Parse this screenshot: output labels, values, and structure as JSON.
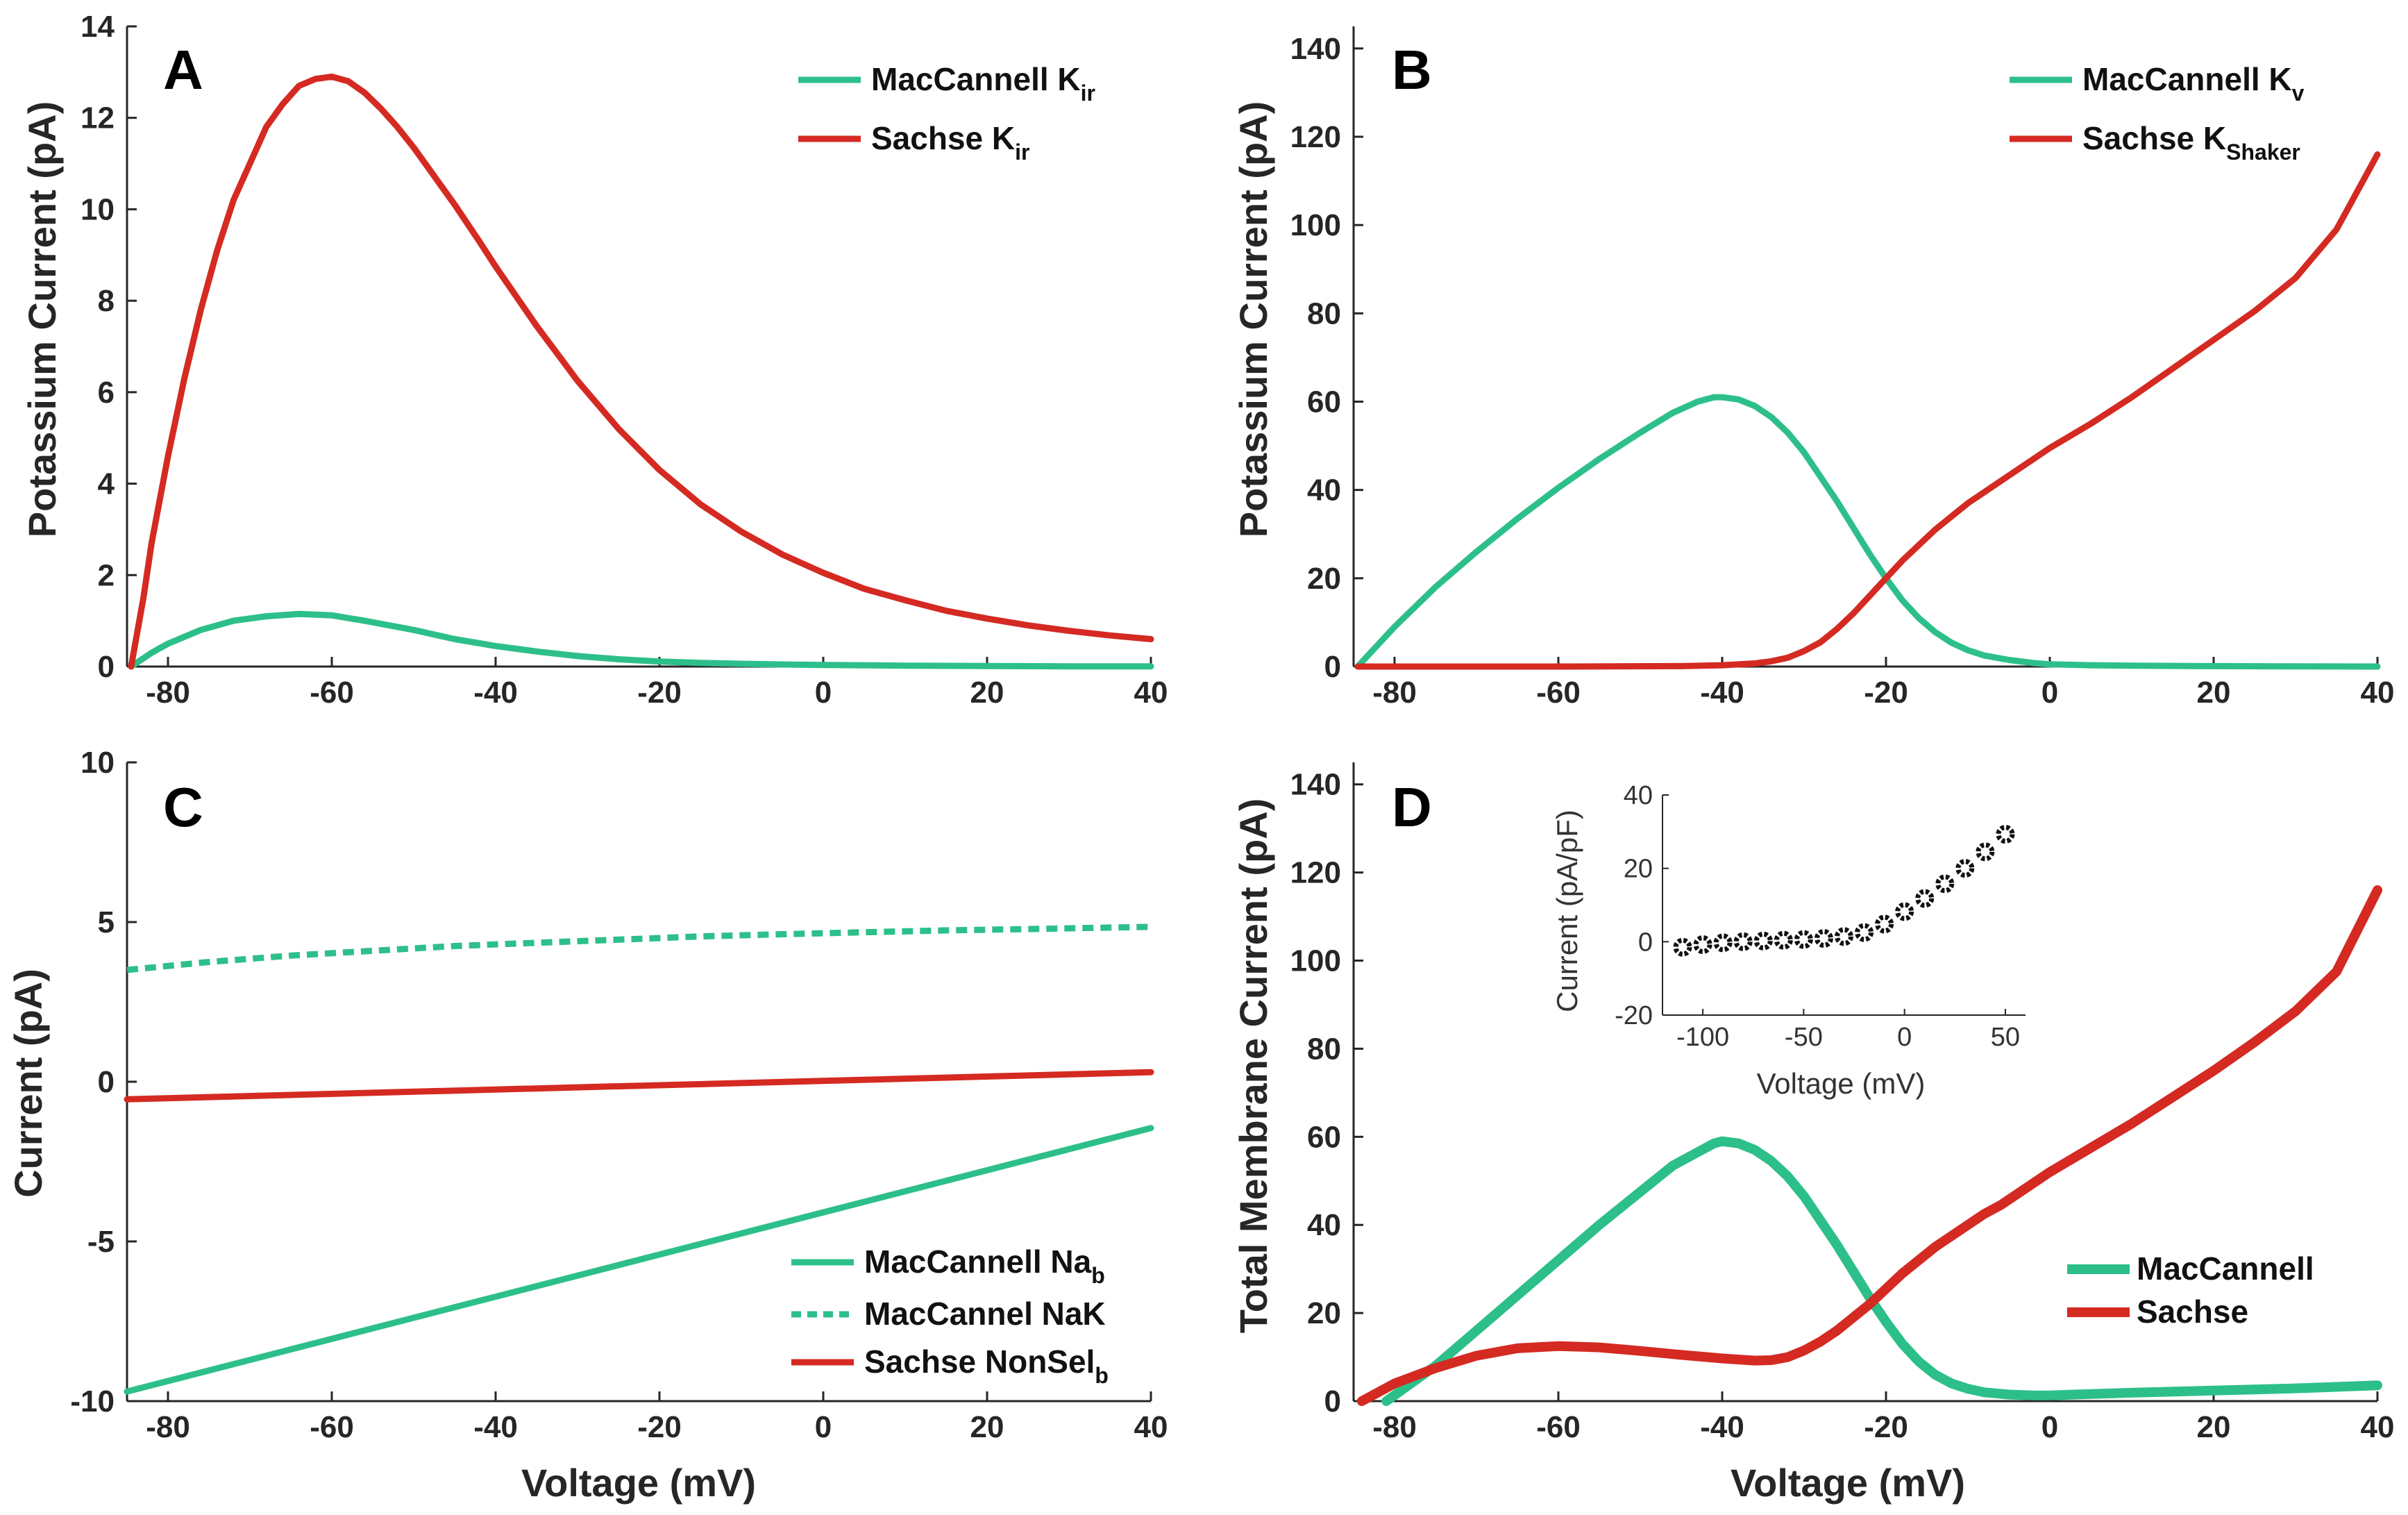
{
  "colors": {
    "green": "#2dbf8a",
    "red": "#d42a22",
    "axis": "#262626",
    "marker": "#111111"
  },
  "chart_data": [
    {
      "type": "line",
      "panel": "A",
      "xlabel": "",
      "ylabel": "Potassium Current (pA)",
      "xlim": [
        -85,
        40
      ],
      "ylim": [
        0,
        14
      ],
      "xticks": [
        "-80",
        "-60",
        "-40",
        "-20",
        "0",
        "20",
        "40"
      ],
      "yticks": [
        "0",
        "2",
        "4",
        "6",
        "8",
        "10",
        "12",
        "14"
      ],
      "legend_position": "top-right",
      "series": [
        {
          "name": "MacCannell K",
          "sub": "ir",
          "color": "green",
          "dash": false,
          "x": [
            -84.5,
            -82,
            -80,
            -76,
            -72,
            -68,
            -64,
            -60,
            -56,
            -50,
            -45,
            -40,
            -35,
            -30,
            -25,
            -20,
            -15,
            -10,
            -5,
            0,
            10,
            20,
            30,
            40
          ],
          "y": [
            0,
            0.3,
            0.5,
            0.8,
            1.0,
            1.1,
            1.15,
            1.12,
            1.0,
            0.8,
            0.6,
            0.45,
            0.33,
            0.23,
            0.16,
            0.11,
            0.08,
            0.06,
            0.045,
            0.035,
            0.02,
            0.01,
            0.005,
            0.003
          ]
        },
        {
          "name": "Sachse K",
          "sub": "ir",
          "color": "red",
          "dash": false,
          "x": [
            -84.5,
            -83,
            -82,
            -80,
            -78,
            -76,
            -74,
            -72,
            -70,
            -68,
            -66,
            -64,
            -62,
            -60,
            -58,
            -56,
            -54,
            -52,
            -50,
            -48,
            -45,
            -42,
            -40,
            -35,
            -30,
            -25,
            -20,
            -15,
            -10,
            -5,
            0,
            5,
            10,
            15,
            20,
            25,
            30,
            35,
            40
          ],
          "y": [
            0,
            1.5,
            2.7,
            4.6,
            6.3,
            7.8,
            9.1,
            10.2,
            11.0,
            11.8,
            12.3,
            12.7,
            12.85,
            12.9,
            12.8,
            12.55,
            12.2,
            11.8,
            11.35,
            10.85,
            10.1,
            9.3,
            8.75,
            7.45,
            6.25,
            5.2,
            4.3,
            3.55,
            2.95,
            2.45,
            2.05,
            1.7,
            1.45,
            1.22,
            1.05,
            0.9,
            0.78,
            0.68,
            0.6
          ]
        }
      ]
    },
    {
      "type": "line",
      "panel": "B",
      "xlabel": "",
      "ylabel": "Potassium Current (pA)",
      "xlim": [
        -85,
        40
      ],
      "ylim": [
        0,
        145
      ],
      "xticks": [
        "-80",
        "-60",
        "-40",
        "-20",
        "0",
        "20",
        "40"
      ],
      "yticks": [
        "0",
        "20",
        "40",
        "60",
        "80",
        "100",
        "120",
        "140"
      ],
      "legend_position": "top-right",
      "series": [
        {
          "name": "MacCannell K",
          "sub": "v",
          "color": "green",
          "dash": false,
          "x": [
            -84.5,
            -80,
            -75,
            -70,
            -65,
            -60,
            -55,
            -50,
            -46,
            -43,
            -41,
            -40,
            -38,
            -36,
            -34,
            -32,
            -30,
            -28,
            -26,
            -24,
            -22,
            -20,
            -18,
            -16,
            -14,
            -12,
            -10,
            -8,
            -5,
            -2,
            0,
            5,
            10,
            20,
            30,
            40
          ],
          "y": [
            0,
            9,
            18,
            26,
            33.5,
            40.5,
            47,
            53,
            57.5,
            60,
            61,
            61,
            60.5,
            59,
            56.5,
            53,
            48.5,
            43,
            37.5,
            31.5,
            25.5,
            20,
            15,
            11,
            7.8,
            5.4,
            3.7,
            2.5,
            1.5,
            0.8,
            0.5,
            0.3,
            0.2,
            0.1,
            0.05,
            0
          ]
        },
        {
          "name": "Sachse K",
          "sub": "Shaker",
          "color": "red",
          "dash": false,
          "x": [
            -84.5,
            -60,
            -45,
            -40,
            -36,
            -34,
            -32,
            -30,
            -28,
            -26,
            -24,
            -22,
            -20,
            -18,
            -16,
            -14,
            -12,
            -10,
            -8,
            -6,
            -4,
            -2,
            0,
            5,
            10,
            15,
            20,
            25,
            30,
            35,
            40
          ],
          "y": [
            0,
            0,
            0.1,
            0.3,
            0.7,
            1.2,
            2,
            3.5,
            5.5,
            8.5,
            12,
            16,
            20,
            24,
            27.5,
            31,
            34,
            37,
            39.5,
            42,
            44.5,
            47,
            49.5,
            55,
            61,
            67.5,
            74,
            80.5,
            88,
            99,
            116
          ]
        }
      ]
    },
    {
      "type": "line",
      "panel": "C",
      "xlabel": "Voltage (mV)",
      "ylabel": "Current (pA)",
      "xlim": [
        -85,
        40
      ],
      "ylim": [
        -10,
        10
      ],
      "xticks": [
        "-80",
        "-60",
        "-40",
        "-20",
        "0",
        "20",
        "40"
      ],
      "yticks": [
        "-10",
        "-5",
        "0",
        "5",
        "10"
      ],
      "legend_position": "bottom-right",
      "series": [
        {
          "name": "MacCannell Na",
          "sub": "b",
          "color": "green",
          "dash": false,
          "x": [
            -85,
            40
          ],
          "y": [
            -9.7,
            -1.45
          ]
        },
        {
          "name": "MacCannel NaK",
          "sub": "",
          "color": "green",
          "dash": true,
          "x": [
            -85,
            -75,
            -65,
            -55,
            -45,
            -35,
            -25,
            -15,
            -5,
            5,
            15,
            25,
            40
          ],
          "y": [
            3.5,
            3.75,
            3.95,
            4.1,
            4.25,
            4.35,
            4.45,
            4.55,
            4.62,
            4.68,
            4.74,
            4.78,
            4.85
          ]
        },
        {
          "name": "Sachse NonSel",
          "sub": "b",
          "color": "red",
          "dash": false,
          "x": [
            -85,
            40
          ],
          "y": [
            -0.55,
            0.3
          ]
        }
      ]
    },
    {
      "type": "line",
      "panel": "D",
      "xlabel": "Voltage (mV)",
      "ylabel": "Total Membrane Current (pA)",
      "xlim": [
        -85,
        40
      ],
      "ylim": [
        0,
        145
      ],
      "xticks": [
        "-80",
        "-60",
        "-40",
        "-20",
        "0",
        "20",
        "40"
      ],
      "yticks": [
        "0",
        "20",
        "40",
        "60",
        "80",
        "100",
        "120",
        "140"
      ],
      "legend_position": "bottom-right",
      "series": [
        {
          "name": "MacCannell",
          "sub": "",
          "color": "green",
          "dash": false,
          "x": [
            -81,
            -78,
            -75,
            -70,
            -65,
            -60,
            -55,
            -50,
            -46,
            -43,
            -41,
            -40,
            -38,
            -36,
            -34,
            -32,
            -30,
            -28,
            -26,
            -24,
            -22,
            -20,
            -18,
            -16,
            -14,
            -12,
            -10,
            -8,
            -5,
            -2,
            0,
            3,
            10,
            20,
            30,
            40
          ],
          "y": [
            0,
            4,
            8,
            16,
            24,
            32,
            40,
            47.5,
            53.5,
            56.5,
            58.5,
            59,
            58.5,
            57,
            54.5,
            51,
            46.5,
            41,
            35.5,
            29.5,
            23.5,
            18,
            13,
            9,
            6,
            4,
            2.8,
            2,
            1.5,
            1.3,
            1.3,
            1.5,
            1.9,
            2.4,
            2.9,
            3.6
          ]
        },
        {
          "name": "Sachse",
          "sub": "",
          "color": "red",
          "dash": false,
          "x": [
            -84,
            -82,
            -80,
            -75,
            -70,
            -65,
            -60,
            -55,
            -50,
            -45,
            -40,
            -36,
            -34,
            -32,
            -30,
            -28,
            -26,
            -24,
            -22,
            -20,
            -18,
            -16,
            -14,
            -12,
            -10,
            -8,
            -6,
            -4,
            -2,
            0,
            5,
            10,
            15,
            20,
            25,
            30,
            35,
            40
          ],
          "y": [
            0,
            2,
            4,
            7.5,
            10.3,
            12,
            12.5,
            12.2,
            11.4,
            10.5,
            9.7,
            9.2,
            9.3,
            10,
            11.5,
            13.5,
            16,
            19,
            22,
            25.5,
            29,
            32,
            35,
            37.5,
            40,
            42.5,
            44.5,
            47,
            49.5,
            52,
            57.5,
            63,
            69,
            75,
            81.5,
            88.5,
            97.5,
            116
          ]
        }
      ],
      "inset": {
        "type": "scatter",
        "xlabel": "Voltage (mV)",
        "ylabel": "Current (pA/pF)",
        "xlim": [
          -120,
          60
        ],
        "ylim": [
          -20,
          40
        ],
        "xticks": [
          "-100",
          "-50",
          "0",
          "50"
        ],
        "yticks": [
          "-20",
          "0",
          "20",
          "40"
        ],
        "x": [
          -110,
          -100,
          -90,
          -80,
          -70,
          -60,
          -50,
          -40,
          -30,
          -20,
          -10,
          0,
          10,
          20,
          30,
          40,
          50
        ],
        "y": [
          -1.5,
          -0.8,
          -0.3,
          0,
          0.2,
          0.4,
          0.6,
          0.9,
          1.4,
          2.5,
          4.8,
          8.2,
          11.8,
          15.8,
          20,
          24.5,
          29.3
        ]
      }
    }
  ]
}
